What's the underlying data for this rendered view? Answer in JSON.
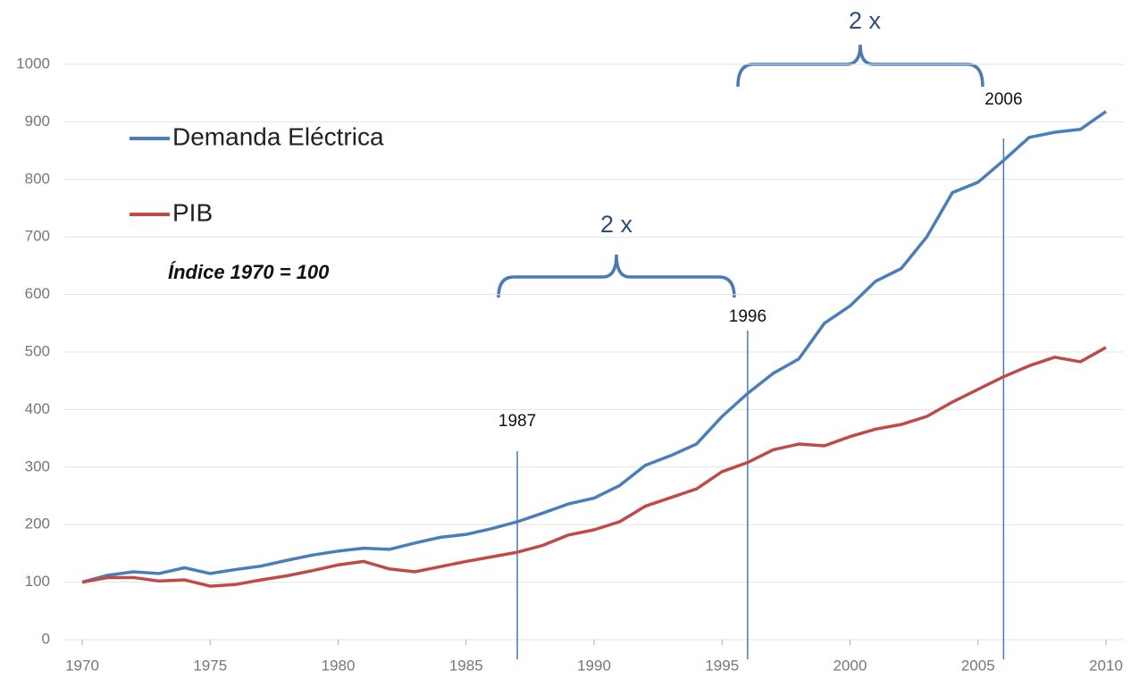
{
  "chart_data": {
    "type": "line",
    "x": [
      1970,
      1971,
      1972,
      1973,
      1974,
      1975,
      1976,
      1977,
      1978,
      1979,
      1980,
      1981,
      1982,
      1983,
      1984,
      1985,
      1986,
      1987,
      1988,
      1989,
      1990,
      1991,
      1992,
      1993,
      1994,
      1995,
      1996,
      1997,
      1998,
      1999,
      2000,
      2001,
      2002,
      2003,
      2004,
      2005,
      2006,
      2007,
      2008,
      2009,
      2010
    ],
    "series": [
      {
        "name": "Demanda Eléctrica",
        "color": "#4a7ebb",
        "values": [
          100,
          112,
          118,
          115,
          125,
          115,
          122,
          128,
          138,
          147,
          154,
          159,
          157,
          168,
          178,
          183,
          193,
          205,
          220,
          236,
          246,
          268,
          303,
          320,
          340,
          388,
          428,
          463,
          488,
          550,
          580,
          623,
          645,
          700,
          777,
          795,
          833,
          873,
          882,
          887,
          918
        ]
      },
      {
        "name": "PIB",
        "color": "#be4b48",
        "values": [
          100,
          108,
          108,
          102,
          104,
          93,
          96,
          104,
          111,
          120,
          130,
          136,
          123,
          118,
          127,
          136,
          144,
          152,
          164,
          182,
          191,
          205,
          232,
          247,
          262,
          292,
          308,
          330,
          340,
          337,
          353,
          366,
          374,
          388,
          413,
          435,
          457,
          476,
          491,
          483,
          508
        ]
      }
    ],
    "xlim": [
      1970,
      2010
    ],
    "xticks": [
      1970,
      1975,
      1980,
      1985,
      1990,
      1995,
      2000,
      2005,
      2010
    ],
    "ylim": [
      0,
      1000
    ],
    "yticks": [
      0,
      100,
      200,
      300,
      400,
      500,
      600,
      700,
      800,
      900,
      1000
    ],
    "grid": true,
    "legend": "upper left",
    "annotations": [
      "Índice 1970 = 100",
      "2 x",
      "2 x"
    ],
    "markers": [
      1987,
      1996,
      2006
    ]
  }
}
